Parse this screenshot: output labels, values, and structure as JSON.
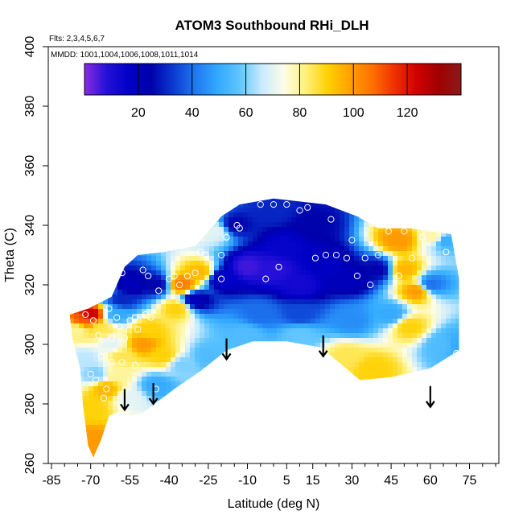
{
  "title": "ATOM3 Southbound RHi_DLH",
  "flights_label": "Flts: 2,3,4,5,6,7",
  "mmdd_label": "MMDD: 1001,1004,1006,1008,1011,1014",
  "chart_data": {
    "type": "heatmap",
    "title": "ATOM3 Southbound RHi_DLH",
    "xlabel": "Latitude (deg N)",
    "ylabel": "Theta (C)",
    "xlim": [
      -85,
      85
    ],
    "ylim": [
      260,
      400
    ],
    "x_ticks": [
      -85,
      -70,
      -55,
      -40,
      -25,
      -10,
      5,
      15,
      30,
      45,
      60,
      75
    ],
    "x_tick_labels": [
      "-85",
      "-70",
      "-55",
      "-40",
      "-25",
      "-10",
      "5",
      "15",
      "30",
      "45",
      "60",
      "75"
    ],
    "y_ticks": [
      260,
      280,
      300,
      320,
      340,
      360,
      380,
      400
    ],
    "y_tick_labels": [
      "260",
      "280",
      "300",
      "320",
      "340",
      "360",
      "380",
      "400"
    ],
    "colorbar": {
      "range": [
        0,
        140
      ],
      "ticks": [
        20,
        40,
        60,
        80,
        100,
        120
      ],
      "tick_labels": [
        "20",
        "40",
        "60",
        "80",
        "100",
        "120"
      ],
      "colors": [
        "#8a2be2",
        "#2410d8",
        "#0000c8",
        "#0000aa",
        "#0a3ad0",
        "#1f78f0",
        "#31a8ff",
        "#5fc5ff",
        "#c8eaff",
        "#fdfde8",
        "#fff07a",
        "#ffd000",
        "#ffa000",
        "#ff7000",
        "#f03000",
        "#d00000",
        "#a00000",
        "#8b1a1a"
      ]
    },
    "domain_outline": [
      [
        -78,
        310
      ],
      [
        -71,
        312
      ],
      [
        -62,
        316
      ],
      [
        -57,
        326
      ],
      [
        -52,
        330
      ],
      [
        -42,
        331
      ],
      [
        -30,
        333
      ],
      [
        -20,
        343
      ],
      [
        -13,
        347
      ],
      [
        0,
        349
      ],
      [
        10,
        348
      ],
      [
        20,
        347
      ],
      [
        32,
        343
      ],
      [
        40,
        339
      ],
      [
        52,
        339
      ],
      [
        60,
        338
      ],
      [
        68,
        337
      ],
      [
        71,
        322
      ],
      [
        71,
        298
      ],
      [
        60,
        292
      ],
      [
        45,
        289
      ],
      [
        33,
        288
      ],
      [
        25,
        294
      ],
      [
        18,
        299
      ],
      [
        5,
        301
      ],
      [
        -8,
        301
      ],
      [
        -18,
        298
      ],
      [
        -28,
        291
      ],
      [
        -38,
        285
      ],
      [
        -44,
        281
      ],
      [
        -50,
        277
      ],
      [
        -55,
        276
      ],
      [
        -58,
        278
      ],
      [
        -63,
        276
      ],
      [
        -66,
        268
      ],
      [
        -69,
        262
      ],
      [
        -71,
        266
      ],
      [
        -73,
        280
      ],
      [
        -74,
        292
      ],
      [
        -77,
        302
      ],
      [
        -78,
        310
      ]
    ],
    "field_points": [
      {
        "x": -10,
        "y": 326,
        "rhi": 6
      },
      {
        "x": 0,
        "y": 325,
        "rhi": 8
      },
      {
        "x": 10,
        "y": 320,
        "rhi": 12
      },
      {
        "x": -20,
        "y": 322,
        "rhi": 15
      },
      {
        "x": 5,
        "y": 333,
        "rhi": 15
      },
      {
        "x": 20,
        "y": 327,
        "rhi": 18
      },
      {
        "x": -30,
        "y": 315,
        "rhi": 20
      },
      {
        "x": 30,
        "y": 322,
        "rhi": 20
      },
      {
        "x": -15,
        "y": 340,
        "rhi": 25
      },
      {
        "x": 0,
        "y": 345,
        "rhi": 30
      },
      {
        "x": 15,
        "y": 340,
        "rhi": 25
      },
      {
        "x": 40,
        "y": 325,
        "rhi": 25
      },
      {
        "x": -45,
        "y": 320,
        "rhi": 25
      },
      {
        "x": -55,
        "y": 320,
        "rhi": 20
      },
      {
        "x": -65,
        "y": 318,
        "rhi": 40
      },
      {
        "x": -5,
        "y": 310,
        "rhi": 40
      },
      {
        "x": 10,
        "y": 310,
        "rhi": 35
      },
      {
        "x": 30,
        "y": 308,
        "rhi": 45
      },
      {
        "x": 45,
        "y": 310,
        "rhi": 50
      },
      {
        "x": 60,
        "y": 320,
        "rhi": 40
      },
      {
        "x": 65,
        "y": 335,
        "rhi": 50
      },
      {
        "x": 65,
        "y": 300,
        "rhi": 55
      },
      {
        "x": -10,
        "y": 303,
        "rhi": 55
      },
      {
        "x": 10,
        "y": 303,
        "rhi": 58
      },
      {
        "x": 28,
        "y": 296,
        "rhi": 85
      },
      {
        "x": 38,
        "y": 292,
        "rhi": 90
      },
      {
        "x": 50,
        "y": 325,
        "rhi": 95
      },
      {
        "x": 55,
        "y": 318,
        "rhi": 100
      },
      {
        "x": 48,
        "y": 335,
        "rhi": 100
      },
      {
        "x": 52,
        "y": 306,
        "rhi": 90
      },
      {
        "x": 62,
        "y": 336,
        "rhi": 80
      },
      {
        "x": 70,
        "y": 300,
        "rhi": 50
      },
      {
        "x": -35,
        "y": 320,
        "rhi": 105
      },
      {
        "x": -28,
        "y": 324,
        "rhi": 95
      },
      {
        "x": -37,
        "y": 312,
        "rhi": 90
      },
      {
        "x": -30,
        "y": 340,
        "rhi": 80
      },
      {
        "x": -22,
        "y": 338,
        "rhi": 70
      },
      {
        "x": -48,
        "y": 305,
        "rhi": 90
      },
      {
        "x": -50,
        "y": 300,
        "rhi": 100
      },
      {
        "x": -42,
        "y": 296,
        "rhi": 90
      },
      {
        "x": -35,
        "y": 293,
        "rhi": 60
      },
      {
        "x": -25,
        "y": 296,
        "rhi": 55
      },
      {
        "x": -45,
        "y": 286,
        "rhi": 50
      },
      {
        "x": -55,
        "y": 282,
        "rhi": 70
      },
      {
        "x": -58,
        "y": 296,
        "rhi": 85
      },
      {
        "x": -70,
        "y": 310,
        "rhi": 125
      },
      {
        "x": -73,
        "y": 308,
        "rhi": 110
      },
      {
        "x": -75,
        "y": 305,
        "rhi": 80
      },
      {
        "x": -66,
        "y": 305,
        "rhi": 85
      },
      {
        "x": -62,
        "y": 300,
        "rhi": 70
      },
      {
        "x": -60,
        "y": 310,
        "rhi": 50
      },
      {
        "x": -58,
        "y": 315,
        "rhi": 30
      },
      {
        "x": -68,
        "y": 290,
        "rhi": 60
      },
      {
        "x": -70,
        "y": 278,
        "rhi": 90
      },
      {
        "x": -69,
        "y": 268,
        "rhi": 100
      },
      {
        "x": -72,
        "y": 295,
        "rhi": 65
      },
      {
        "x": -64,
        "y": 285,
        "rhi": 95
      },
      {
        "x": -60,
        "y": 290,
        "rhi": 80
      }
    ],
    "observation_points": [
      [
        -62,
        329
      ],
      [
        -64,
        326
      ],
      [
        -66,
        320
      ],
      [
        -65,
        323
      ],
      [
        -58,
        324
      ],
      [
        -50,
        325
      ],
      [
        -48,
        323
      ],
      [
        -40,
        322
      ],
      [
        -38,
        323
      ],
      [
        -36,
        320
      ],
      [
        -33,
        323
      ],
      [
        -30,
        324
      ],
      [
        -28,
        331
      ],
      [
        -26,
        330
      ],
      [
        -20,
        330
      ],
      [
        -18,
        336
      ],
      [
        -14,
        340
      ],
      [
        -13,
        339
      ],
      [
        -5,
        347
      ],
      [
        0,
        347
      ],
      [
        5,
        347
      ],
      [
        10,
        345
      ],
      [
        13,
        346
      ],
      [
        22,
        342
      ],
      [
        24,
        330
      ],
      [
        28,
        329
      ],
      [
        30,
        335
      ],
      [
        32,
        323
      ],
      [
        35,
        329
      ],
      [
        37,
        320
      ],
      [
        40,
        330
      ],
      [
        44,
        338
      ],
      [
        48,
        323
      ],
      [
        50,
        338
      ],
      [
        53,
        329
      ],
      [
        57,
        336
      ],
      [
        66,
        331
      ],
      [
        -20,
        322
      ],
      [
        -3,
        322
      ],
      [
        2,
        326
      ],
      [
        16,
        329
      ],
      [
        20,
        330
      ],
      [
        -72,
        310
      ],
      [
        -69,
        308
      ],
      [
        -67,
        303
      ],
      [
        -63,
        312
      ],
      [
        -60,
        309
      ],
      [
        -59,
        306
      ],
      [
        -62,
        302
      ],
      [
        -57,
        302
      ],
      [
        -55,
        308
      ],
      [
        -53,
        309
      ],
      [
        -52,
        305
      ],
      [
        -49,
        310
      ],
      [
        -47,
        309
      ],
      [
        -44,
        318
      ],
      [
        -66,
        296
      ],
      [
        -70,
        290
      ],
      [
        -68,
        288
      ],
      [
        -64,
        285
      ],
      [
        -62,
        294
      ],
      [
        -58,
        294
      ],
      [
        -65,
        282
      ],
      [
        -60,
        275
      ],
      [
        -53,
        293
      ],
      [
        -45,
        285
      ],
      [
        70,
        297
      ]
    ],
    "arrows": [
      {
        "x": -57,
        "y_top": 285,
        "y_bottom": 278
      },
      {
        "x": -46,
        "y_top": 287,
        "y_bottom": 280
      },
      {
        "x": -18,
        "y_top": 302,
        "y_bottom": 295
      },
      {
        "x": 19,
        "y_top": 303,
        "y_bottom": 296
      },
      {
        "x": 60,
        "y_top": 286,
        "y_bottom": 279
      }
    ]
  }
}
